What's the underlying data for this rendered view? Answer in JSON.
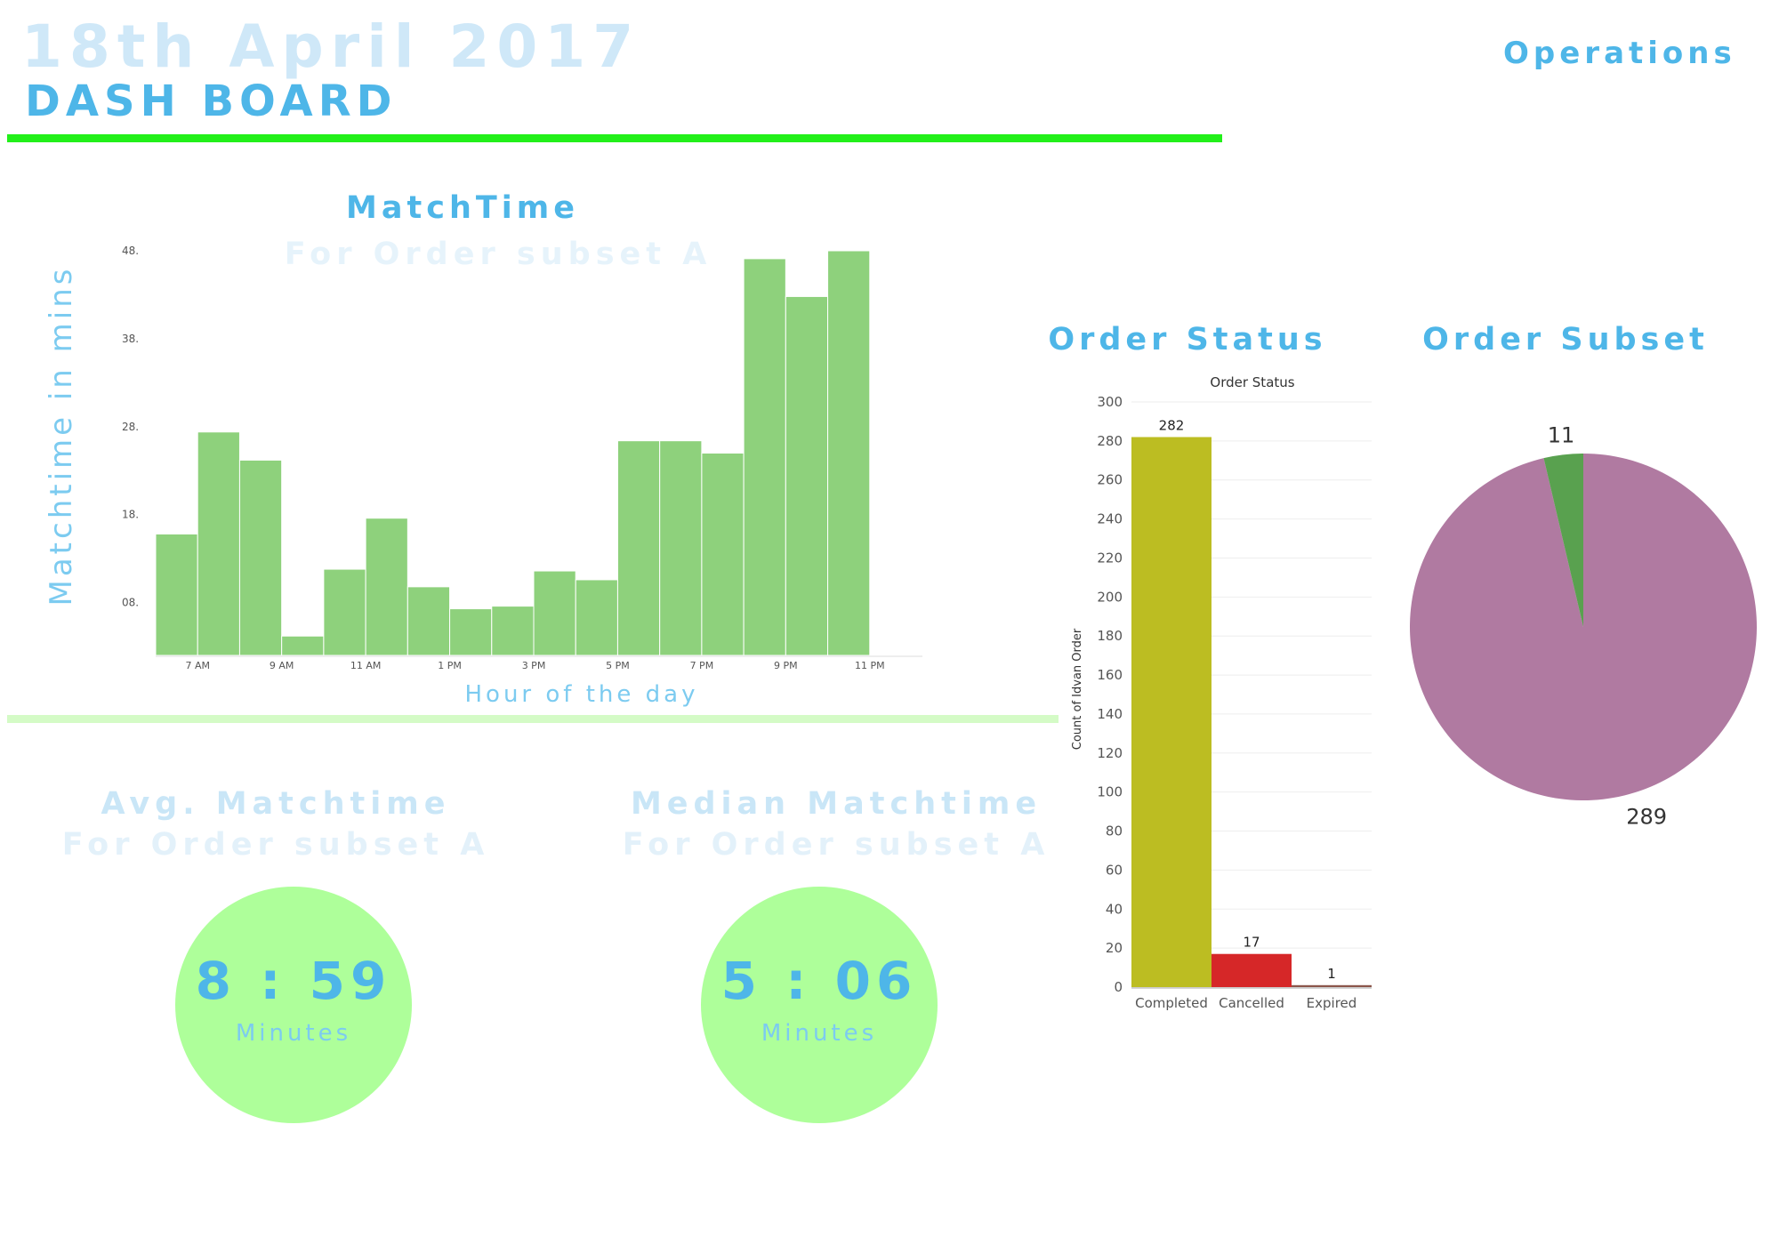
{
  "header": {
    "date": "18th April 2017",
    "title": "DASH BOARD",
    "section": "Operations"
  },
  "matchtime": {
    "title": "MatchTime",
    "subtitle": "For Order subset A"
  },
  "avg": {
    "title": "Avg. Matchtime",
    "subtitle": "For Order subset A",
    "value": "8 : 59",
    "unit": "Minutes"
  },
  "median": {
    "title": "Median Matchtime",
    "subtitle": "For Order subset A",
    "value": "5 : 06",
    "unit": "Minutes"
  },
  "order_status": {
    "heading": "Order Status"
  },
  "order_subset": {
    "heading": "Order Subset"
  },
  "colors": {
    "accent": "#4eb6e8",
    "hist_bar": "#8ed17c",
    "completed": "#bcbd22",
    "cancelled": "#d62728",
    "expired": "#8c564b",
    "pie_major": "#b07aa1",
    "pie_minor": "#59a14f",
    "green_rule": "#22f01a"
  },
  "chart_data": [
    {
      "type": "bar",
      "title": "",
      "xlabel": "Hour of the day",
      "ylabel": "Matchtime in mins",
      "ylim": [
        2,
        48
      ],
      "y_ticks": [
        8,
        18,
        28,
        38,
        48
      ],
      "y_tick_labels": [
        "08.",
        "18.",
        "28.",
        "38.",
        "48."
      ],
      "x_tick_labels": [
        "7 AM",
        "9 AM",
        "11 AM",
        "1 PM",
        "3 PM",
        "5 PM",
        "7 PM",
        "9 PM",
        "11 PM"
      ],
      "categories": [
        "6 AM",
        "7 AM",
        "8 AM",
        "9 AM",
        "10 AM",
        "11 AM",
        "12 PM",
        "1 PM",
        "2 PM",
        "3 PM",
        "4 PM",
        "5 PM",
        "6 PM",
        "7 PM",
        "8 PM",
        "9 PM",
        "10 PM",
        "11 PM"
      ],
      "values": [
        15.8,
        27.4,
        24.2,
        4.2,
        11.8,
        17.6,
        9.8,
        7.3,
        7.6,
        11.6,
        10.6,
        26.4,
        26.4,
        25.0,
        47.1,
        42.8,
        48.0,
        0
      ],
      "grid": false
    },
    {
      "type": "bar",
      "title": "Order Status",
      "xlabel": "",
      "ylabel": "Count of Idvan Order",
      "ylim": [
        0,
        300
      ],
      "y_ticks": [
        0,
        20,
        40,
        60,
        80,
        100,
        120,
        140,
        160,
        180,
        200,
        220,
        240,
        260,
        280,
        300
      ],
      "categories": [
        "Completed",
        "Cancelled",
        "Expired"
      ],
      "values": [
        282,
        17,
        1
      ],
      "grid": true
    },
    {
      "type": "pie",
      "title": "",
      "categories": [
        "",
        ""
      ],
      "values": [
        289,
        11
      ]
    }
  ]
}
